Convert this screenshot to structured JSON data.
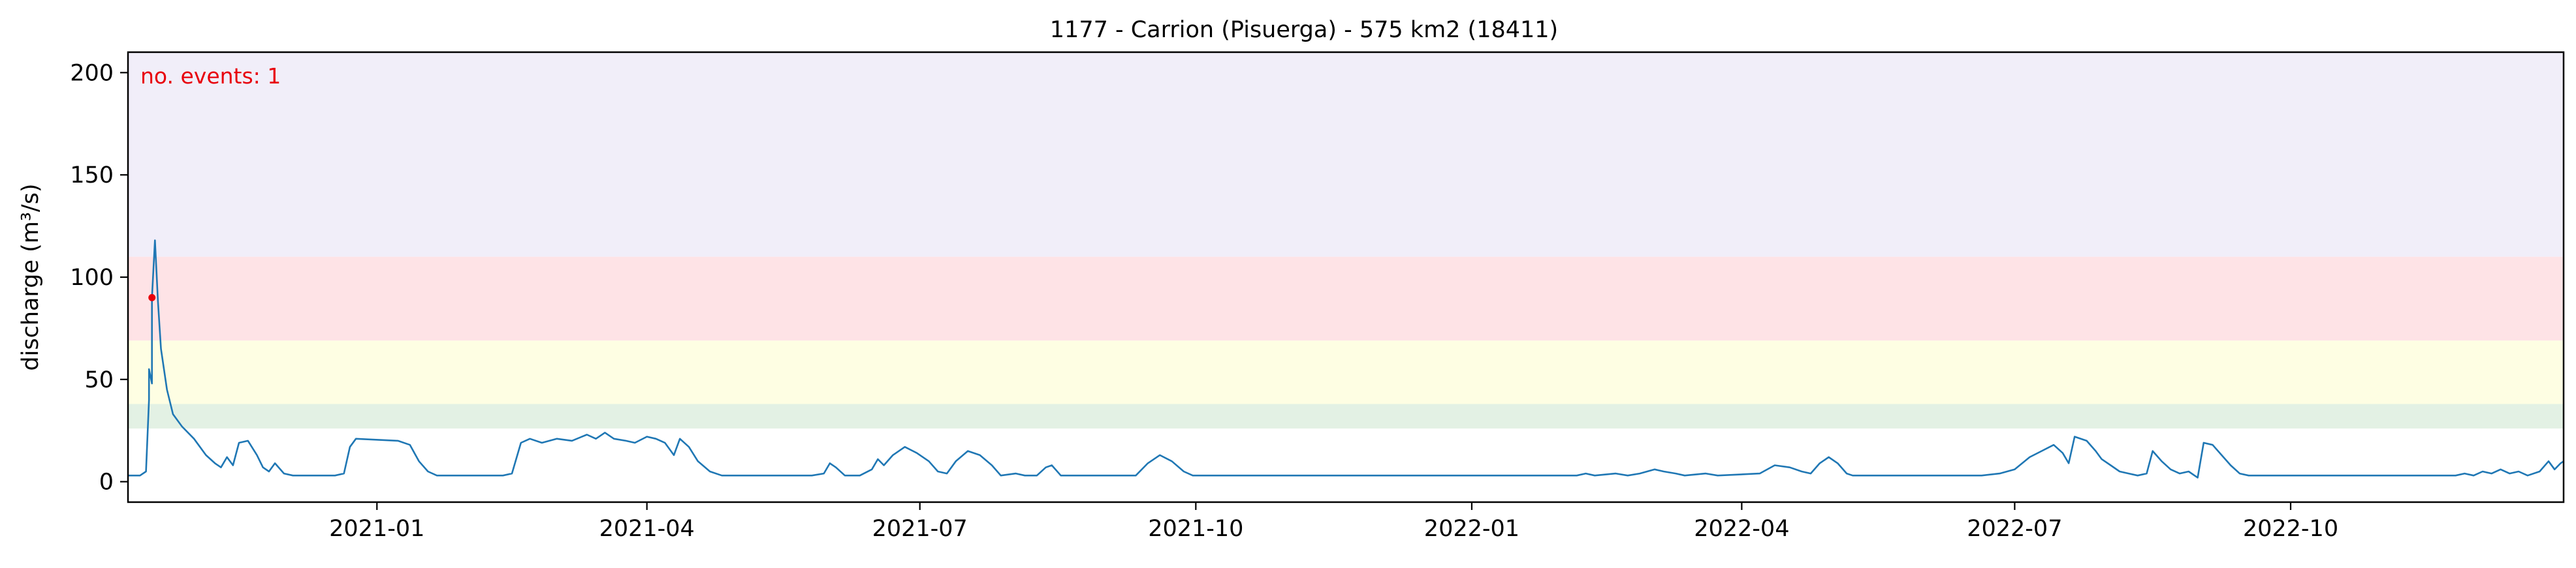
{
  "chart_data": {
    "type": "line",
    "title": "1177 - Carrion (Pisuerga) - 575 km2 (18411)",
    "xlabel": "",
    "ylabel": "discharge (m³/s)",
    "xlim": [
      "2020-10-10",
      "2022-12-31"
    ],
    "ylim": [
      -10,
      210
    ],
    "yticks": [
      0,
      50,
      100,
      150,
      200
    ],
    "xticks": [
      "2021-01",
      "2021-04",
      "2021-07",
      "2021-10",
      "2022-01",
      "2022-04",
      "2022-07",
      "2022-10"
    ],
    "xtick_dates": [
      "2021-01-01",
      "2021-04-01",
      "2021-07-01",
      "2021-10-01",
      "2022-01-01",
      "2022-04-01",
      "2022-07-01",
      "2022-10-01"
    ],
    "grid": false,
    "bands": [
      {
        "name": "low",
        "y0": 26,
        "y1": 38,
        "color": "#e3f1e4"
      },
      {
        "name": "medium",
        "y0": 38,
        "y1": 69,
        "color": "#fefee3"
      },
      {
        "name": "high",
        "y0": 69,
        "y1": 110,
        "color": "#fee3e6"
      },
      {
        "name": "severe",
        "y0": 110,
        "y1": 210,
        "color": "#f1eef9"
      }
    ],
    "annotation": {
      "text": "no. events: 1",
      "color": "#e8000b"
    },
    "events": [
      {
        "date": "2020-10-18",
        "value": 90,
        "color": "#e8000b"
      }
    ],
    "series": [
      {
        "color": "#1f77b4",
        "points": [
          [
            "2020-10-10",
            3
          ],
          [
            "2020-10-14",
            3
          ],
          [
            "2020-10-16",
            5
          ],
          [
            "2020-10-17",
            40
          ],
          [
            "2020-10-17",
            55
          ],
          [
            "2020-10-18",
            48
          ],
          [
            "2020-10-18",
            90
          ],
          [
            "2020-10-19",
            118
          ],
          [
            "2020-10-20",
            88
          ],
          [
            "2020-10-21",
            65
          ],
          [
            "2020-10-23",
            45
          ],
          [
            "2020-10-25",
            33
          ],
          [
            "2020-10-28",
            27
          ],
          [
            "2020-11-01",
            21
          ],
          [
            "2020-11-05",
            13
          ],
          [
            "2020-11-08",
            9
          ],
          [
            "2020-11-10",
            7
          ],
          [
            "2020-11-12",
            12
          ],
          [
            "2020-11-14",
            8
          ],
          [
            "2020-11-16",
            19
          ],
          [
            "2020-11-19",
            20
          ],
          [
            "2020-11-22",
            13
          ],
          [
            "2020-11-24",
            7
          ],
          [
            "2020-11-26",
            5
          ],
          [
            "2020-11-28",
            9
          ],
          [
            "2020-12-01",
            4
          ],
          [
            "2020-12-04",
            3
          ],
          [
            "2020-12-18",
            3
          ],
          [
            "2020-12-21",
            4
          ],
          [
            "2020-12-23",
            17
          ],
          [
            "2020-12-25",
            21
          ],
          [
            "2021-01-08",
            20
          ],
          [
            "2021-01-12",
            18
          ],
          [
            "2021-01-15",
            10
          ],
          [
            "2021-01-18",
            5
          ],
          [
            "2021-01-21",
            3
          ],
          [
            "2021-02-12",
            3
          ],
          [
            "2021-02-15",
            4
          ],
          [
            "2021-02-18",
            19
          ],
          [
            "2021-02-21",
            21
          ],
          [
            "2021-02-25",
            19
          ],
          [
            "2021-03-02",
            21
          ],
          [
            "2021-03-07",
            20
          ],
          [
            "2021-03-12",
            23
          ],
          [
            "2021-03-15",
            21
          ],
          [
            "2021-03-18",
            24
          ],
          [
            "2021-03-21",
            21
          ],
          [
            "2021-03-25",
            20
          ],
          [
            "2021-03-28",
            19
          ],
          [
            "2021-04-01",
            22
          ],
          [
            "2021-04-04",
            21
          ],
          [
            "2021-04-07",
            19
          ],
          [
            "2021-04-10",
            13
          ],
          [
            "2021-04-12",
            21
          ],
          [
            "2021-04-15",
            17
          ],
          [
            "2021-04-18",
            10
          ],
          [
            "2021-04-22",
            5
          ],
          [
            "2021-04-26",
            3
          ],
          [
            "2021-05-26",
            3
          ],
          [
            "2021-05-30",
            4
          ],
          [
            "2021-06-01",
            9
          ],
          [
            "2021-06-03",
            7
          ],
          [
            "2021-06-06",
            3
          ],
          [
            "2021-06-11",
            3
          ],
          [
            "2021-06-15",
            6
          ],
          [
            "2021-06-17",
            11
          ],
          [
            "2021-06-19",
            8
          ],
          [
            "2021-06-22",
            13
          ],
          [
            "2021-06-26",
            17
          ],
          [
            "2021-06-30",
            14
          ],
          [
            "2021-07-04",
            10
          ],
          [
            "2021-07-07",
            5
          ],
          [
            "2021-07-10",
            4
          ],
          [
            "2021-07-13",
            10
          ],
          [
            "2021-07-17",
            15
          ],
          [
            "2021-07-21",
            13
          ],
          [
            "2021-07-25",
            8
          ],
          [
            "2021-07-28",
            3
          ],
          [
            "2021-08-02",
            4
          ],
          [
            "2021-08-05",
            3
          ],
          [
            "2021-08-09",
            3
          ],
          [
            "2021-08-12",
            7
          ],
          [
            "2021-08-14",
            8
          ],
          [
            "2021-08-17",
            3
          ],
          [
            "2021-08-22",
            3
          ],
          [
            "2021-09-11",
            3
          ],
          [
            "2021-09-15",
            9
          ],
          [
            "2021-09-19",
            13
          ],
          [
            "2021-09-23",
            10
          ],
          [
            "2021-09-27",
            5
          ],
          [
            "2021-09-30",
            3
          ],
          [
            "2021-12-01",
            3
          ],
          [
            "2021-12-15",
            3
          ],
          [
            "2022-01-15",
            3
          ],
          [
            "2022-01-21",
            3
          ],
          [
            "2022-02-05",
            3
          ],
          [
            "2022-02-08",
            4
          ],
          [
            "2022-02-11",
            3
          ],
          [
            "2022-02-18",
            4
          ],
          [
            "2022-02-22",
            3
          ],
          [
            "2022-02-26",
            4
          ],
          [
            "2022-03-03",
            6
          ],
          [
            "2022-03-06",
            5
          ],
          [
            "2022-03-10",
            4
          ],
          [
            "2022-03-13",
            3
          ],
          [
            "2022-03-20",
            4
          ],
          [
            "2022-03-24",
            3
          ],
          [
            "2022-04-07",
            4
          ],
          [
            "2022-04-12",
            8
          ],
          [
            "2022-04-17",
            7
          ],
          [
            "2022-04-21",
            5
          ],
          [
            "2022-04-24",
            4
          ],
          [
            "2022-04-27",
            9
          ],
          [
            "2022-04-30",
            12
          ],
          [
            "2022-05-03",
            9
          ],
          [
            "2022-05-06",
            4
          ],
          [
            "2022-05-08",
            3
          ],
          [
            "2022-06-13",
            3
          ],
          [
            "2022-06-20",
            3
          ],
          [
            "2022-06-26",
            4
          ],
          [
            "2022-07-01",
            6
          ],
          [
            "2022-07-06",
            12
          ],
          [
            "2022-07-10",
            15
          ],
          [
            "2022-07-14",
            18
          ],
          [
            "2022-07-17",
            14
          ],
          [
            "2022-07-19",
            9
          ],
          [
            "2022-07-21",
            22
          ],
          [
            "2022-07-25",
            20
          ],
          [
            "2022-07-28",
            15
          ],
          [
            "2022-07-30",
            11
          ],
          [
            "2022-08-02",
            8
          ],
          [
            "2022-08-05",
            5
          ],
          [
            "2022-08-08",
            4
          ],
          [
            "2022-08-11",
            3
          ],
          [
            "2022-08-14",
            4
          ],
          [
            "2022-08-16",
            15
          ],
          [
            "2022-08-19",
            10
          ],
          [
            "2022-08-22",
            6
          ],
          [
            "2022-08-25",
            4
          ],
          [
            "2022-08-28",
            5
          ],
          [
            "2022-08-31",
            2
          ],
          [
            "2022-09-02",
            19
          ],
          [
            "2022-09-05",
            18
          ],
          [
            "2022-09-08",
            13
          ],
          [
            "2022-09-11",
            8
          ],
          [
            "2022-09-14",
            4
          ],
          [
            "2022-09-17",
            3
          ],
          [
            "2022-11-25",
            3
          ],
          [
            "2022-11-28",
            4
          ],
          [
            "2022-12-01",
            3
          ],
          [
            "2022-12-04",
            5
          ],
          [
            "2022-12-07",
            4
          ],
          [
            "2022-12-10",
            6
          ],
          [
            "2022-12-13",
            4
          ],
          [
            "2022-12-16",
            5
          ],
          [
            "2022-12-19",
            3
          ],
          [
            "2022-12-23",
            5
          ],
          [
            "2022-12-26",
            10
          ],
          [
            "2022-12-28",
            6
          ],
          [
            "2022-12-30",
            9
          ],
          [
            "2022-12-31",
            10
          ]
        ]
      }
    ]
  }
}
